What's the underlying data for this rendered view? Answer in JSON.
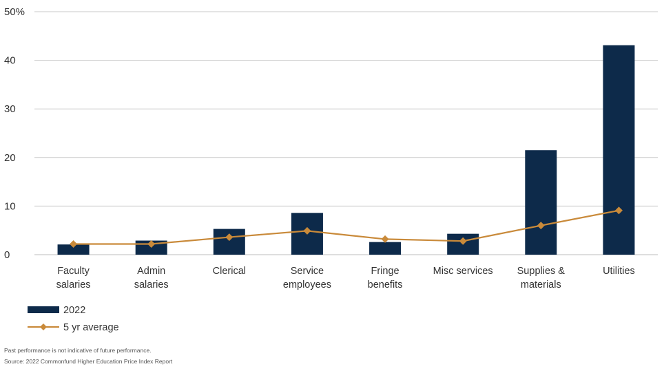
{
  "chart_data": {
    "type": "bar",
    "categories": [
      [
        "Faculty",
        "salaries"
      ],
      [
        "Admin",
        "salaries"
      ],
      [
        "Clerical"
      ],
      [
        "Service",
        "employees"
      ],
      [
        "Fringe",
        "benefits"
      ],
      [
        "Misc services"
      ],
      [
        "Supplies &",
        "materials"
      ],
      [
        "Utilities"
      ]
    ],
    "series": [
      {
        "name": "2022",
        "type": "bar",
        "color": "#0d2a4a",
        "values": [
          2.1,
          2.9,
          5.3,
          8.6,
          2.6,
          4.3,
          21.5,
          43.1
        ]
      },
      {
        "name": "5 yr average",
        "type": "line",
        "color": "#c98a3a",
        "values": [
          2.2,
          2.2,
          3.6,
          4.9,
          3.2,
          2.8,
          6.0,
          9.1
        ]
      }
    ],
    "ylim": [
      0,
      50
    ],
    "yticks": [
      0,
      10,
      20,
      30,
      40,
      50
    ],
    "ytick_labels": [
      "0",
      "10",
      "20",
      "30",
      "40",
      "50%"
    ],
    "grid": true,
    "legend_placement": "bottom-left"
  },
  "footnotes": {
    "line1": "Past performance is not indicative of future performance.",
    "line2": "Source: 2022 Commonfund Higher Education Price Index Report"
  }
}
